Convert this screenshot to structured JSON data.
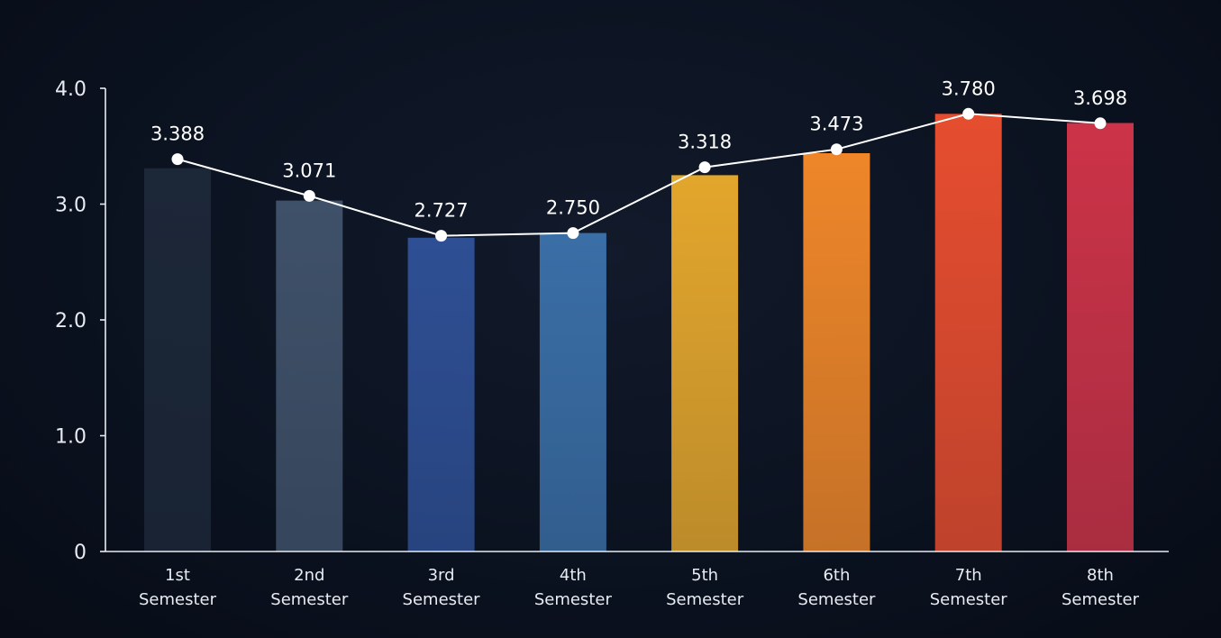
{
  "chart_data": {
    "type": "bar",
    "categories": [
      [
        "1st",
        "Semester"
      ],
      [
        "2nd",
        "Semester"
      ],
      [
        "3rd",
        "Semester"
      ],
      [
        "4th",
        "Semester"
      ],
      [
        "5th",
        "Semester"
      ],
      [
        "6th",
        "Semester"
      ],
      [
        "7th",
        "Semester"
      ],
      [
        "8th",
        "Semester"
      ]
    ],
    "values": [
      3.31,
      3.03,
      2.71,
      2.75,
      3.25,
      3.44,
      3.78,
      3.7
    ],
    "line_values": [
      3.388,
      3.071,
      2.727,
      2.75,
      3.318,
      3.473,
      3.78,
      3.698
    ],
    "line_labels": [
      "3.388",
      "3.071",
      "2.727",
      "2.750",
      "3.318",
      "3.473",
      "3.780",
      "3.698"
    ],
    "y_ticks": [
      0,
      1,
      2,
      3,
      4
    ],
    "y_tick_labels": [
      "0",
      "1.0",
      "2.0",
      "3.0",
      "4.0"
    ],
    "ylim": [
      0,
      4.0
    ],
    "grid": false,
    "title": "",
    "xlabel": "",
    "ylabel": "",
    "bar_colors": [
      "#1c2738",
      "#3f5169",
      "#2e4f94",
      "#3a6ea6",
      "#e3a62c",
      "#ee8629",
      "#e64d2f",
      "#cc3348"
    ],
    "line_color": "#ffffff",
    "axis_color": "#e8ecf2"
  }
}
